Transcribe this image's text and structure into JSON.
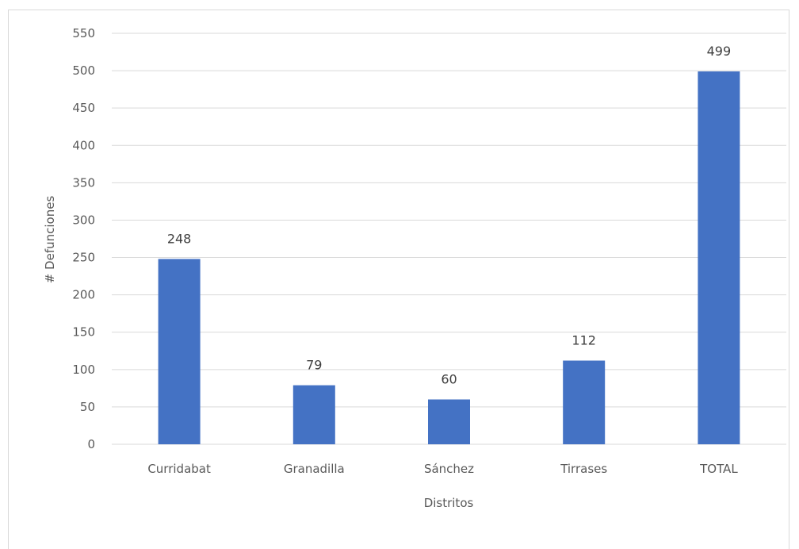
{
  "chart_data": {
    "type": "bar",
    "categories": [
      "Curridabat",
      "Granadilla",
      "Sánchez",
      "Tirrases",
      "TOTAL"
    ],
    "values": [
      248,
      79,
      60,
      112,
      499
    ],
    "data_labels": [
      "248",
      "79",
      "60",
      "112",
      "499"
    ],
    "xlabel": "Distritos",
    "ylabel": "# Defunciones",
    "ylim": [
      0,
      550
    ],
    "yticks": [
      0,
      50,
      100,
      150,
      200,
      250,
      300,
      350,
      400,
      450,
      500,
      550
    ],
    "grid": true,
    "legend": "none",
    "bar_color": "#4472c4",
    "gridline_color": "#d9d9d9"
  }
}
